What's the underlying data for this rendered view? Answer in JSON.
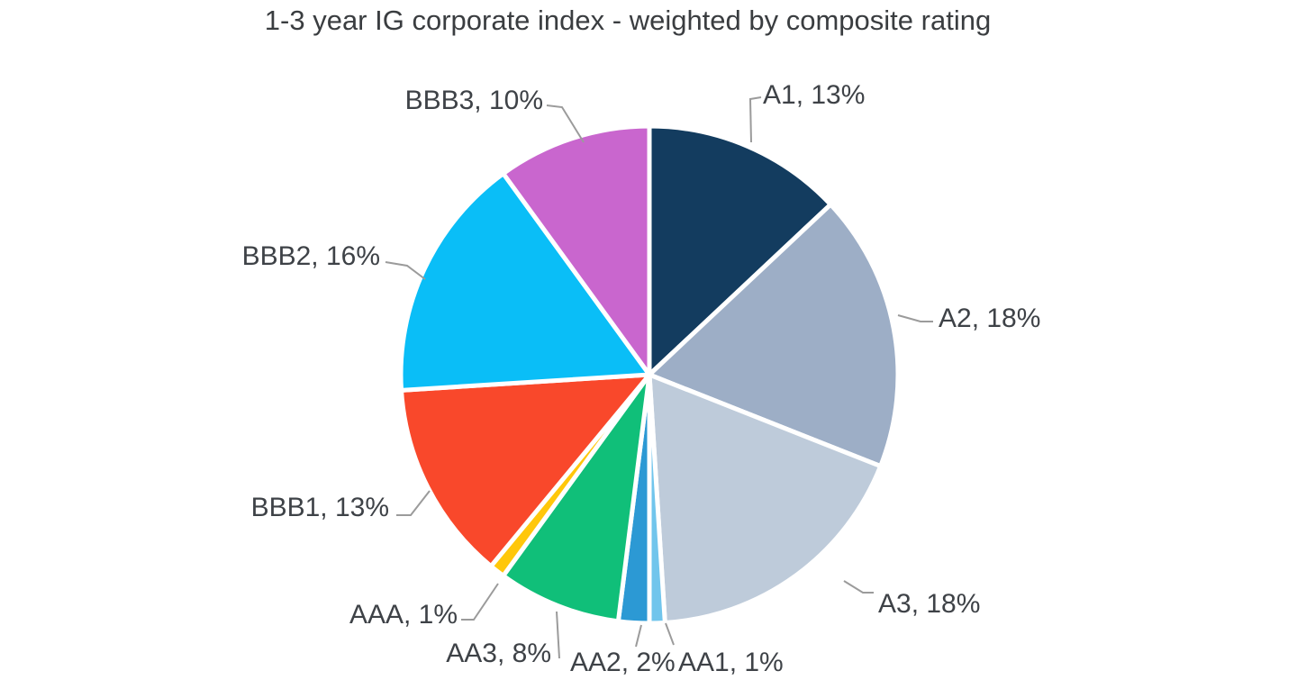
{
  "chart_data": {
    "type": "pie",
    "title": "1-3 year IG corporate index - weighted by composite rating",
    "unit": "%",
    "direction": "clockwise",
    "start_angle_deg": 0,
    "label_format": "{label}, {value}%",
    "label_color": "#3e4247",
    "leader_line_color": "#9b9b9b",
    "background": "#ffffff",
    "slices": [
      {
        "label": "A1",
        "value": 13,
        "color": "#133c5f"
      },
      {
        "label": "A2",
        "value": 18,
        "color": "#9daec6"
      },
      {
        "label": "A3",
        "value": 18,
        "color": "#becbda"
      },
      {
        "label": "AA1",
        "value": 1,
        "color": "#71c5ec"
      },
      {
        "label": "AA2",
        "value": 2,
        "color": "#2c99d4"
      },
      {
        "label": "AA3",
        "value": 8,
        "color": "#10bf79"
      },
      {
        "label": "AAA",
        "value": 1,
        "color": "#ffc70a"
      },
      {
        "label": "BBB1",
        "value": 13,
        "color": "#f9482b"
      },
      {
        "label": "BBB2",
        "value": 16,
        "color": "#0abef7"
      },
      {
        "label": "BBB3",
        "value": 10,
        "color": "#c966ce"
      }
    ]
  }
}
